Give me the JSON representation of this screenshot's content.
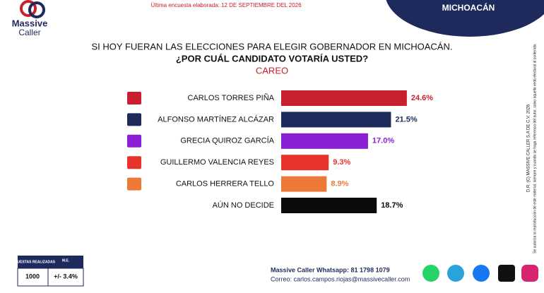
{
  "header": {
    "date_note": "Última encuesta elaborada: 12 DE SEPTIEMBRE DEL 2026",
    "region": "MICHOACÁN",
    "brand_line1": "Massive",
    "brand_line2": "Caller"
  },
  "chart_data": {
    "type": "bar",
    "orientation": "horizontal",
    "title": "SI HOY FUERAN LAS ELECCIONES PARA ELEGIR GOBERNADOR EN MICHOACÁN.",
    "subtitle": "¿POR CUÁL CANDIDATO VOTARÍA USTED?",
    "section": "CAREO",
    "categories": [
      "CARLOS TORRES PIÑA",
      "ALFONSO MARTÍNEZ ALCÁZAR",
      "GRECIA QUIROZ GARCÍA",
      "GUILLERMO VALENCIA REYES",
      "CARLOS HERRERA TELLO",
      "AÚN NO DECIDE"
    ],
    "values": [
      24.6,
      21.5,
      17.0,
      9.3,
      8.9,
      18.7
    ],
    "value_labels": [
      "24.6%",
      "21.5%",
      "17.0%",
      "9.3%",
      "8.9%",
      "18.7%"
    ],
    "colors": [
      "#c8202f",
      "#1f2a5c",
      "#8a1fd6",
      "#e8322c",
      "#ec7a36",
      "#0a0a0a"
    ]
  },
  "side_note": {
    "line1": "D.R. (C) MASSIVE CALLER S.A DE C.V. 2026",
    "line2": "Se autoriza la reproducción de este material, siempre y cuando se haga referencia del autor, salvo aquella veda electoral al contenido."
  },
  "survey_table": {
    "headers": [
      "ENCUESTAS REALIZADAS",
      "M.E."
    ],
    "rows": [
      [
        "1000",
        "+/- 3.4%"
      ]
    ]
  },
  "footer": {
    "whatsapp": "Massive Caller Whatsapp: 81 1798 1079",
    "email": "Correo: carlos.campos.riojas@massivecaller.com"
  }
}
